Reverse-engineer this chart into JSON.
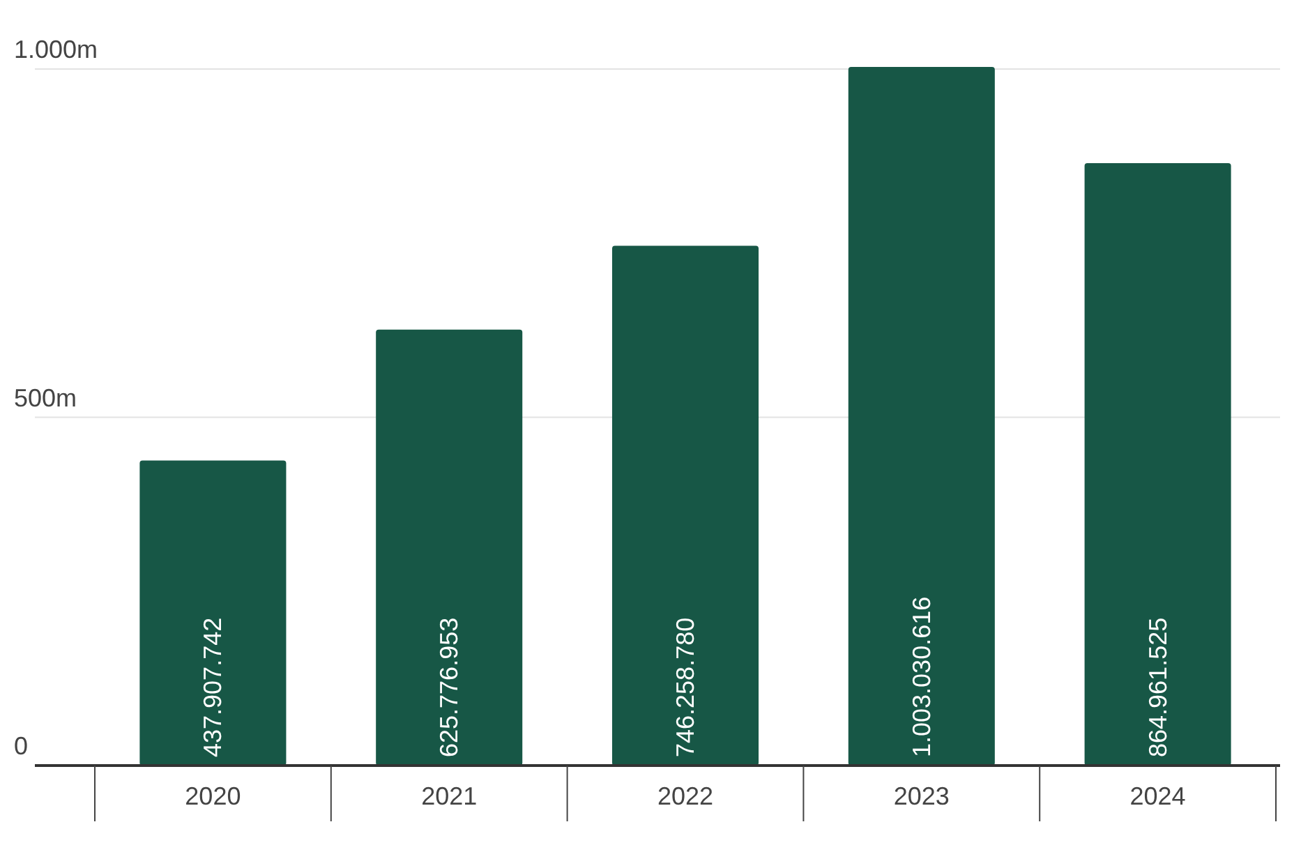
{
  "chart_data": {
    "type": "bar",
    "categories": [
      "2020",
      "2021",
      "2022",
      "2023",
      "2024"
    ],
    "values": [
      437907742,
      625776953,
      746258780,
      1003030616,
      864961525
    ],
    "value_labels": [
      "437.907.742",
      "625.776.953",
      "746.258.780",
      "1.003.030.616",
      "864.961.525"
    ],
    "color": "#175746",
    "ylim": [
      0,
      1003030616
    ],
    "yticks": [
      {
        "value": 0,
        "label": "0"
      },
      {
        "value": 500000000,
        "label": "500m"
      },
      {
        "value": 1000000000,
        "label": "1.000m"
      }
    ],
    "grid": "y"
  }
}
